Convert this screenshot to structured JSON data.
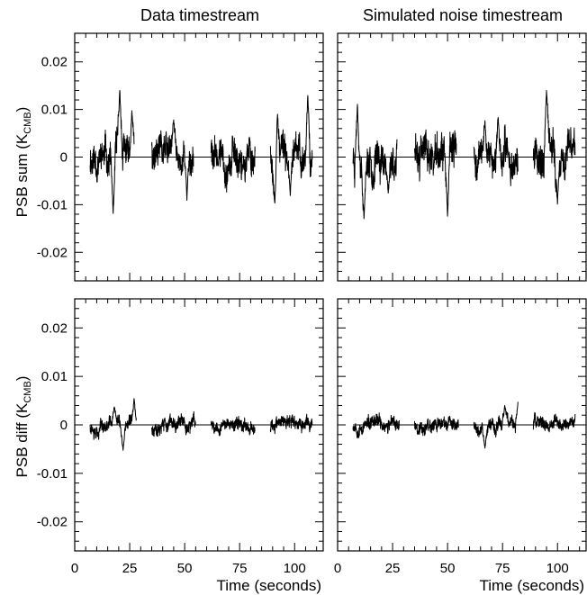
{
  "figure": {
    "column_titles": [
      "Data timestream",
      "Simulated noise timestream"
    ],
    "row_ylabels": [
      {
        "main": "PSB sum (K",
        "subscript": "CMB",
        "close": ")"
      },
      {
        "main": "PSB diff (K",
        "subscript": "CMB",
        "close": ")"
      }
    ],
    "xlabel": "Time (seconds)"
  },
  "chart_data": [
    {
      "type": "line",
      "panel": "top-left",
      "title": "Data timestream",
      "ylabel": "PSB sum (KCMB)",
      "xlabel": "",
      "xlim": [
        0,
        113
      ],
      "ylim": [
        -0.026,
        0.026
      ],
      "xticks": [
        0,
        25,
        50,
        75,
        100
      ],
      "yticks": [
        -0.02,
        -0.01,
        0,
        0.01,
        0.02
      ],
      "x_tick_labels_shown": false,
      "segments": [
        [
          7,
          27
        ],
        [
          35,
          54
        ],
        [
          62,
          82
        ],
        [
          89,
          108
        ]
      ],
      "sigma": 0.0042,
      "peak_max": 0.0155,
      "peak_min": -0.013,
      "peaks": [
        [
          20.5,
          0.0155
        ],
        [
          17.5,
          -0.013
        ],
        [
          106,
          0.0145
        ],
        [
          51,
          0.0095
        ],
        [
          51,
          -0.011
        ],
        [
          92,
          0.0115
        ],
        [
          91,
          -0.011
        ],
        [
          26,
          0.0105
        ],
        [
          45,
          0.0085
        ],
        [
          98,
          -0.009
        ]
      ],
      "seed": 11
    },
    {
      "type": "line",
      "panel": "top-right",
      "title": "Simulated noise timestream",
      "ylabel": "",
      "xlabel": "",
      "xlim": [
        0,
        113
      ],
      "ylim": [
        -0.026,
        0.026
      ],
      "xticks": [
        0,
        25,
        50,
        75,
        100
      ],
      "yticks": [
        -0.02,
        -0.01,
        0,
        0.01,
        0.02
      ],
      "x_tick_labels_shown": false,
      "segments": [
        [
          7,
          27
        ],
        [
          35,
          54
        ],
        [
          62,
          82
        ],
        [
          89,
          108
        ]
      ],
      "sigma": 0.0045,
      "peak_max": 0.0155,
      "peak_min": -0.014,
      "peaks": [
        [
          9,
          0.0125
        ],
        [
          12,
          -0.014
        ],
        [
          95,
          0.0155
        ],
        [
          50,
          -0.014
        ],
        [
          100,
          -0.011
        ],
        [
          60,
          -0.01
        ],
        [
          73,
          0.0095
        ],
        [
          57,
          0.0125
        ],
        [
          67,
          0.0085
        ],
        [
          23,
          -0.008
        ]
      ],
      "seed": 23
    },
    {
      "type": "line",
      "panel": "bottom-left",
      "title": "",
      "ylabel": "PSB diff (KCMB)",
      "xlabel": "Time (seconds)",
      "xlim": [
        0,
        113
      ],
      "ylim": [
        -0.026,
        0.026
      ],
      "xticks": [
        0,
        25,
        50,
        75,
        100
      ],
      "yticks": [
        -0.02,
        -0.01,
        0,
        0.01,
        0.02
      ],
      "x_tick_labels_shown": true,
      "segments": [
        [
          7,
          28
        ],
        [
          35,
          55
        ],
        [
          62,
          82
        ],
        [
          89,
          108
        ]
      ],
      "sigma": 0.0017,
      "peak_max": 0.006,
      "peak_min": -0.0058,
      "peaks": [
        [
          27,
          0.006
        ],
        [
          22,
          -0.0058
        ],
        [
          18,
          0.0042
        ]
      ],
      "seed": 37
    },
    {
      "type": "line",
      "panel": "bottom-right",
      "title": "",
      "ylabel": "",
      "xlabel": "Time (seconds)",
      "xlim": [
        0,
        113
      ],
      "ylim": [
        -0.026,
        0.026
      ],
      "xticks": [
        0,
        25,
        50,
        75,
        100
      ],
      "yticks": [
        -0.02,
        -0.01,
        0,
        0.01,
        0.02
      ],
      "x_tick_labels_shown": true,
      "segments": [
        [
          7,
          28
        ],
        [
          35,
          55
        ],
        [
          62,
          82
        ],
        [
          89,
          108
        ]
      ],
      "sigma": 0.0017,
      "peak_max": 0.0052,
      "peak_min": -0.0052,
      "peaks": [
        [
          82,
          0.0052
        ],
        [
          67,
          -0.0052
        ],
        [
          76,
          0.0045
        ]
      ],
      "seed": 53
    }
  ]
}
